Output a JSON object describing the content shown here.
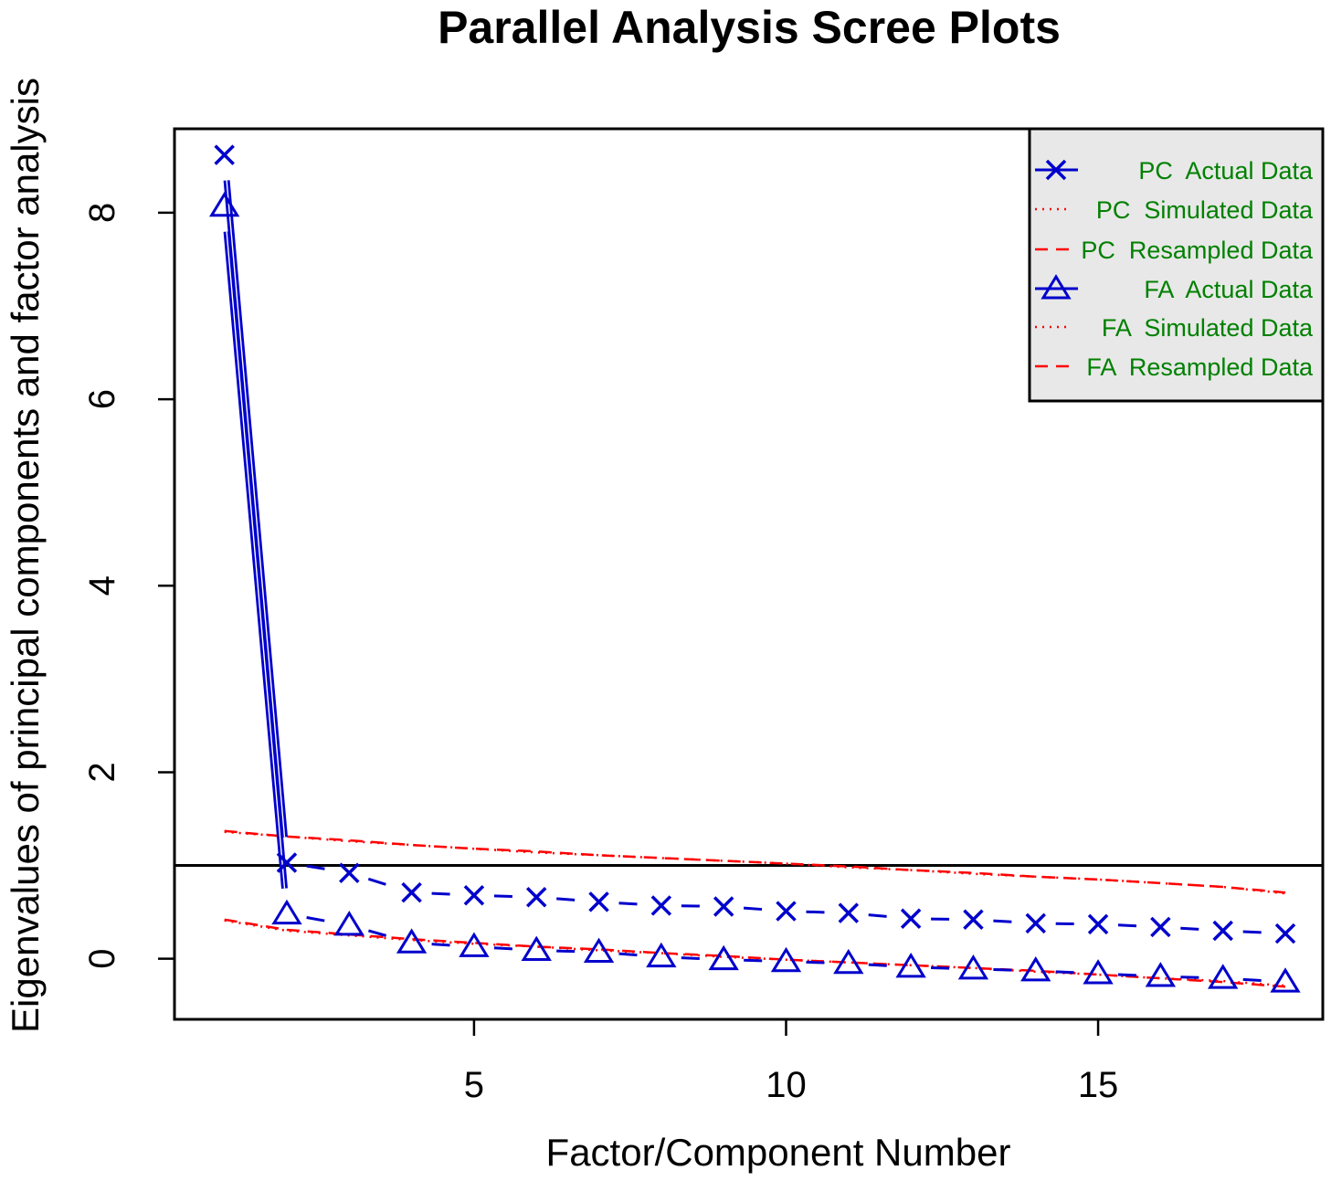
{
  "chart_data": {
    "type": "line",
    "title": "Parallel Analysis Scree Plots",
    "xlabel": "Factor/Component Number",
    "ylabel": "Eigenvalues of principal components and factor analysis",
    "xlim": [
      0.2,
      18.6
    ],
    "ylim": [
      -0.65,
      8.9
    ],
    "xticks": [
      5,
      10,
      15
    ],
    "yticks": [
      0,
      2,
      4,
      6,
      8
    ],
    "reference_line": 1,
    "grid": false,
    "legend_position": "top-right",
    "colors": {
      "actual": "#0000cc",
      "simulated": "#ff0000",
      "legend_text": "#008000",
      "legend_bg": "#e8e8e8"
    },
    "x": [
      1,
      2,
      3,
      4,
      5,
      6,
      7,
      8,
      9,
      10,
      11,
      12,
      13,
      14,
      15,
      16,
      17,
      18
    ],
    "series": [
      {
        "name": "PC  Actual Data",
        "style": "solid-then-dashed",
        "marker": "x",
        "values": [
          8.62,
          1.03,
          0.92,
          0.71,
          0.68,
          0.66,
          0.61,
          0.57,
          0.56,
          0.51,
          0.49,
          0.43,
          0.42,
          0.38,
          0.37,
          0.34,
          0.3,
          0.27
        ]
      },
      {
        "name": "PC  Simulated Data",
        "style": "dotted",
        "marker": "none",
        "values": [
          1.36,
          1.31,
          1.26,
          1.22,
          1.18,
          1.14,
          1.11,
          1.08,
          1.05,
          1.02,
          0.98,
          0.95,
          0.91,
          0.88,
          0.85,
          0.81,
          0.77,
          0.7
        ]
      },
      {
        "name": "PC  Resampled Data",
        "style": "dashed",
        "marker": "none",
        "values": [
          1.37,
          1.31,
          1.27,
          1.22,
          1.18,
          1.15,
          1.11,
          1.08,
          1.05,
          1.02,
          0.99,
          0.95,
          0.92,
          0.88,
          0.85,
          0.81,
          0.77,
          0.71
        ]
      },
      {
        "name": "FA  Actual Data",
        "style": "solid-then-dashed",
        "marker": "triangle",
        "values": [
          8.07,
          0.48,
          0.36,
          0.17,
          0.13,
          0.09,
          0.07,
          0.02,
          -0.01,
          -0.03,
          -0.05,
          -0.09,
          -0.11,
          -0.13,
          -0.16,
          -0.19,
          -0.21,
          -0.25
        ]
      },
      {
        "name": "FA  Simulated Data",
        "style": "dotted",
        "marker": "none",
        "values": [
          0.41,
          0.3,
          0.25,
          0.2,
          0.16,
          0.13,
          0.09,
          0.06,
          0.02,
          -0.01,
          -0.04,
          -0.07,
          -0.1,
          -0.14,
          -0.17,
          -0.21,
          -0.24,
          -0.29
        ]
      },
      {
        "name": "FA  Resampled Data",
        "style": "dashed",
        "marker": "none",
        "values": [
          0.42,
          0.31,
          0.26,
          0.21,
          0.17,
          0.13,
          0.1,
          0.06,
          0.03,
          -0.01,
          -0.04,
          -0.07,
          -0.1,
          -0.13,
          -0.17,
          -0.21,
          -0.25,
          -0.3
        ]
      }
    ]
  }
}
